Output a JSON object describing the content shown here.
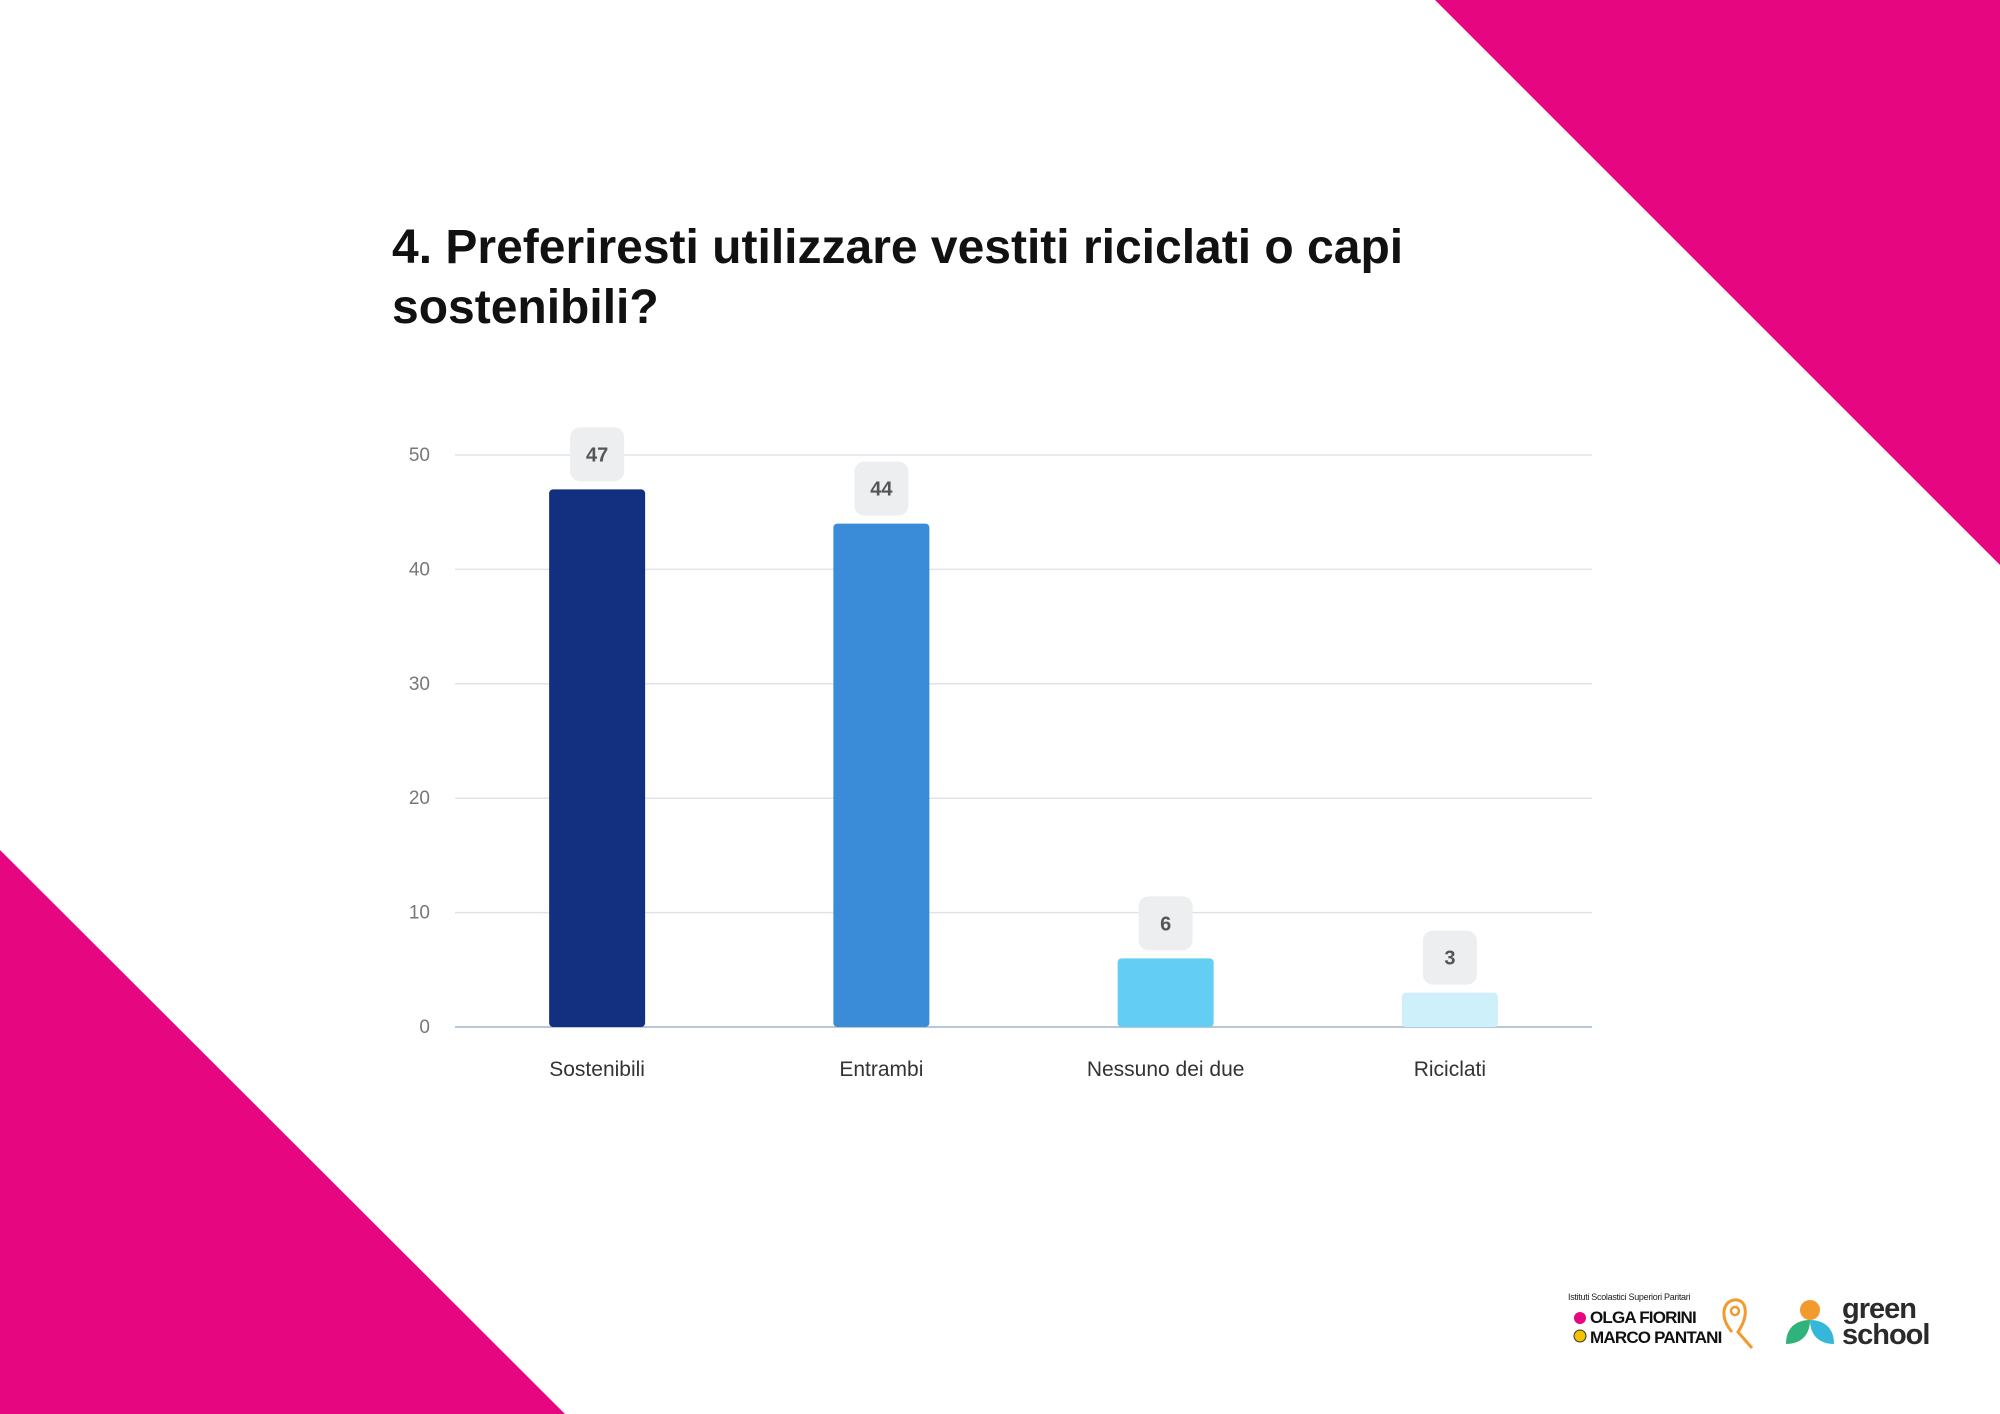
{
  "title": "4. Preferiresti utilizzare vestiti riciclati o capi sostenibili?",
  "colors": {
    "accent": "#e6067f",
    "grid": "#dfe3ea",
    "axis": "#b9c8d6",
    "label_bg": "#eceef0",
    "label_text": "#555555"
  },
  "chart_data": {
    "type": "bar",
    "categories": [
      "Sostenibili",
      "Entrambi",
      "Nessuno dei due",
      "Riciclati"
    ],
    "values": [
      47,
      44,
      6,
      3
    ],
    "bar_colors": [
      "#132f80",
      "#3a8bd8",
      "#63cdf3",
      "#cdf0fb"
    ],
    "ylim": [
      0,
      50
    ],
    "yticks": [
      0,
      10,
      20,
      30,
      40,
      50
    ],
    "grid": true,
    "data_labels": true
  },
  "logos": {
    "school_line": "Istituti Scolastici Superiori Paritari",
    "school_name_1": "OLGA FIORINI",
    "school_name_2": "MARCO PANTANI",
    "green_1": "green",
    "green_2": "school"
  }
}
